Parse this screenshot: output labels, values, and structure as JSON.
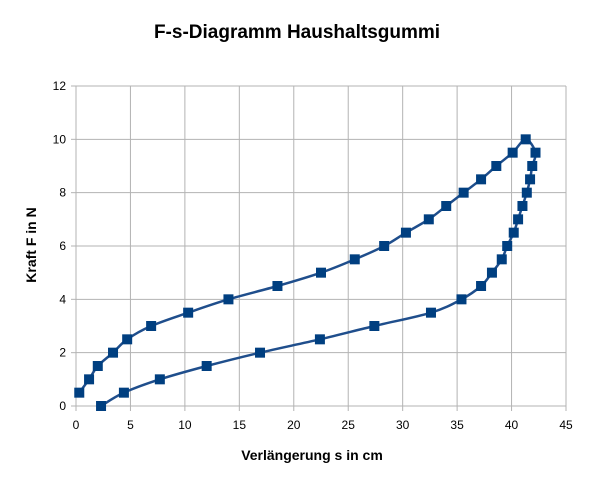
{
  "chart_data": {
    "type": "line",
    "title": "F-s-Diagramm Haushaltsgummi",
    "xlabel": "Verlängerung s in cm",
    "ylabel": "Kraft F in N",
    "xlim": [
      0,
      45
    ],
    "ylim": [
      0,
      12
    ],
    "x_ticks": [
      "0",
      "5",
      "10",
      "15",
      "20",
      "25",
      "30",
      "35",
      "40",
      "45"
    ],
    "y_ticks": [
      "0",
      "2",
      "4",
      "6",
      "8",
      "10",
      "12"
    ],
    "grid": true,
    "legend": false,
    "series": [
      {
        "color": "#1f4e8c",
        "marker": "square",
        "marker_color": "#003f80",
        "points": [
          [
            0.3,
            0.5
          ],
          [
            1.2,
            1.0
          ],
          [
            2.0,
            1.5
          ],
          [
            3.4,
            2.0
          ],
          [
            4.7,
            2.5
          ],
          [
            6.9,
            3.0
          ],
          [
            10.3,
            3.5
          ],
          [
            14.0,
            4.0
          ],
          [
            18.5,
            4.5
          ],
          [
            22.5,
            5.0
          ],
          [
            25.6,
            5.5
          ],
          [
            28.3,
            6.0
          ],
          [
            30.3,
            6.5
          ],
          [
            32.4,
            7.0
          ],
          [
            34.0,
            7.5
          ],
          [
            35.6,
            8.0
          ],
          [
            37.2,
            8.5
          ],
          [
            38.6,
            9.0
          ],
          [
            40.1,
            9.5
          ],
          [
            41.3,
            10.0
          ],
          [
            42.2,
            9.5
          ],
          [
            41.9,
            9.0
          ],
          [
            41.7,
            8.5
          ],
          [
            41.4,
            8.0
          ],
          [
            41.0,
            7.5
          ],
          [
            40.6,
            7.0
          ],
          [
            40.2,
            6.5
          ],
          [
            39.6,
            6.0
          ],
          [
            39.1,
            5.5
          ],
          [
            38.2,
            5.0
          ],
          [
            37.2,
            4.5
          ],
          [
            35.4,
            4.0
          ],
          [
            32.6,
            3.5
          ],
          [
            27.4,
            3.0
          ],
          [
            22.4,
            2.5
          ],
          [
            16.9,
            2.0
          ],
          [
            12.0,
            1.5
          ],
          [
            7.7,
            1.0
          ],
          [
            4.4,
            0.5
          ],
          [
            2.3,
            0.0
          ]
        ]
      }
    ]
  }
}
